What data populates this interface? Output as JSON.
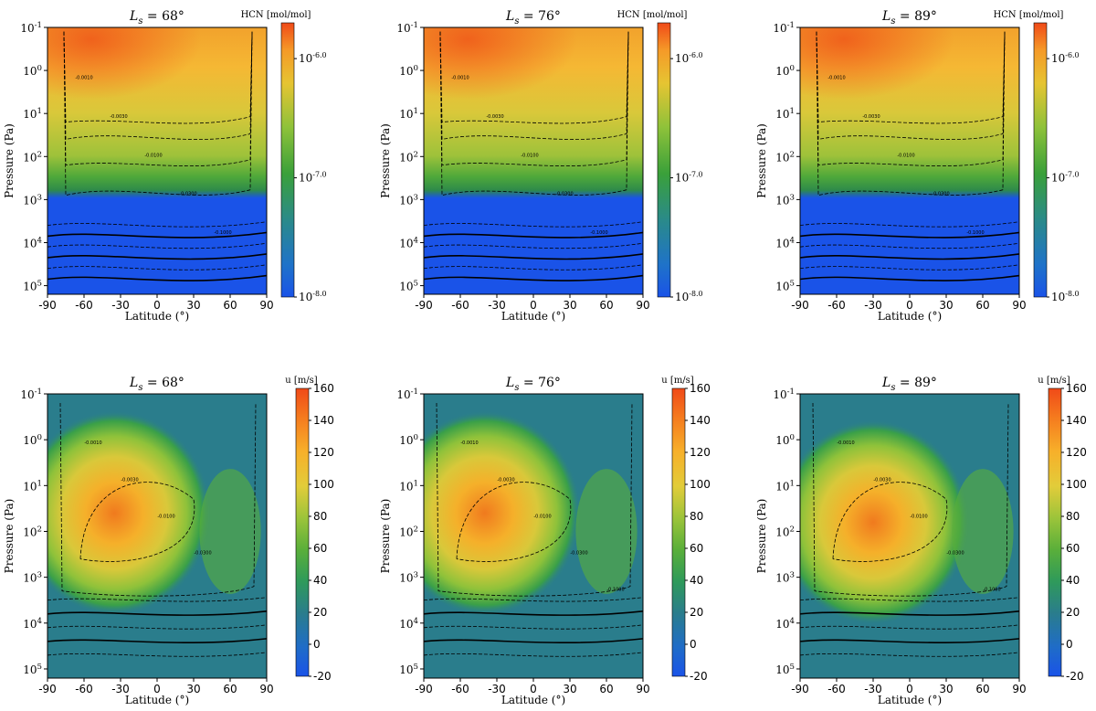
{
  "chart_data": [
    {
      "type": "heatmap",
      "variable": "HCN",
      "colorbar_label": "HCN [mol/mol]",
      "title_prefix": "L",
      "title_subscript": "s",
      "title_value": "68",
      "title_degree": "°",
      "xlabel": "Latitude (°)",
      "ylabel": "Pressure (Pa)",
      "xticks": [
        "-90",
        "-60",
        "-30",
        "0",
        "30",
        "60",
        "90"
      ],
      "xlim": [
        -90,
        90
      ],
      "yticks": [
        {
          "base": "10",
          "exp": "-1"
        },
        {
          "base": "10",
          "exp": "0"
        },
        {
          "base": "10",
          "exp": "1"
        },
        {
          "base": "10",
          "exp": "2"
        },
        {
          "base": "10",
          "exp": "3"
        },
        {
          "base": "10",
          "exp": "4"
        },
        {
          "base": "10",
          "exp": "5"
        }
      ],
      "ylim_log10": [
        -1,
        5.2
      ],
      "cbar_ticks": [
        {
          "base": "10",
          "exp": "-6.0"
        },
        {
          "base": "10",
          "exp": "-7.0"
        },
        {
          "base": "10",
          "exp": "-8.0"
        }
      ],
      "cbar_range_log10": [
        -8,
        -5.7
      ],
      "contour_labels": [
        "-0.0010",
        "-0.0030",
        "-0.0100",
        "-0.0300",
        "-0.1000"
      ]
    },
    {
      "type": "heatmap",
      "variable": "HCN",
      "colorbar_label": "HCN [mol/mol]",
      "title_prefix": "L",
      "title_subscript": "s",
      "title_value": "76",
      "title_degree": "°",
      "xlabel": "Latitude (°)",
      "ylabel": "Pressure (Pa)",
      "xticks": [
        "-90",
        "-60",
        "-30",
        "0",
        "30",
        "60",
        "90"
      ],
      "xlim": [
        -90,
        90
      ],
      "yticks": [
        {
          "base": "10",
          "exp": "-1"
        },
        {
          "base": "10",
          "exp": "0"
        },
        {
          "base": "10",
          "exp": "1"
        },
        {
          "base": "10",
          "exp": "2"
        },
        {
          "base": "10",
          "exp": "3"
        },
        {
          "base": "10",
          "exp": "4"
        },
        {
          "base": "10",
          "exp": "5"
        }
      ],
      "ylim_log10": [
        -1,
        5.2
      ],
      "cbar_ticks": [
        {
          "base": "10",
          "exp": "-6.0"
        },
        {
          "base": "10",
          "exp": "-7.0"
        },
        {
          "base": "10",
          "exp": "-8.0"
        }
      ],
      "cbar_range_log10": [
        -8,
        -5.7
      ],
      "contour_labels": [
        "-0.0010",
        "-0.0030",
        "-0.0100",
        "-0.0300",
        "-0.1000"
      ]
    },
    {
      "type": "heatmap",
      "variable": "HCN",
      "colorbar_label": "HCN [mol/mol]",
      "title_prefix": "L",
      "title_subscript": "s",
      "title_value": "89",
      "title_degree": "°",
      "xlabel": "Latitude (°)",
      "ylabel": "Pressure (Pa)",
      "xticks": [
        "-90",
        "-60",
        "-30",
        "0",
        "30",
        "60",
        "90"
      ],
      "xlim": [
        -90,
        90
      ],
      "yticks": [
        {
          "base": "10",
          "exp": "-1"
        },
        {
          "base": "10",
          "exp": "0"
        },
        {
          "base": "10",
          "exp": "1"
        },
        {
          "base": "10",
          "exp": "2"
        },
        {
          "base": "10",
          "exp": "3"
        },
        {
          "base": "10",
          "exp": "4"
        },
        {
          "base": "10",
          "exp": "5"
        }
      ],
      "ylim_log10": [
        -1,
        5.2
      ],
      "cbar_ticks": [
        {
          "base": "10",
          "exp": "-6.0"
        },
        {
          "base": "10",
          "exp": "-7.0"
        },
        {
          "base": "10",
          "exp": "-8.0"
        }
      ],
      "cbar_range_log10": [
        -8,
        -5.7
      ],
      "contour_labels": [
        "-0.0010",
        "-0.0030",
        "-0.0100",
        "-0.0300",
        "-0.1000"
      ]
    },
    {
      "type": "heatmap",
      "variable": "u",
      "colorbar_label": "u [m/s]",
      "title_prefix": "L",
      "title_subscript": "s",
      "title_value": "68",
      "title_degree": "°",
      "xlabel": "Latitude (°)",
      "ylabel": "Pressure (Pa)",
      "xticks": [
        "-90",
        "-60",
        "-30",
        "0",
        "30",
        "60",
        "90"
      ],
      "xlim": [
        -90,
        90
      ],
      "yticks": [
        {
          "base": "10",
          "exp": "-1"
        },
        {
          "base": "10",
          "exp": "0"
        },
        {
          "base": "10",
          "exp": "1"
        },
        {
          "base": "10",
          "exp": "2"
        },
        {
          "base": "10",
          "exp": "3"
        },
        {
          "base": "10",
          "exp": "4"
        },
        {
          "base": "10",
          "exp": "5"
        }
      ],
      "ylim_log10": [
        -1,
        5.2
      ],
      "cbar_ticks": [
        "160",
        "140",
        "120",
        "100",
        "80",
        "60",
        "40",
        "20",
        "0",
        "-20"
      ],
      "cbar_range": [
        -20,
        160
      ],
      "contour_labels": [
        "-0.0010",
        "-0.0030",
        "-0.0100",
        "-0.0300"
      ]
    },
    {
      "type": "heatmap",
      "variable": "u",
      "colorbar_label": "u [m/s]",
      "title_prefix": "L",
      "title_subscript": "s",
      "title_value": "76",
      "title_degree": "°",
      "xlabel": "Latitude (°)",
      "ylabel": "Pressure (Pa)",
      "xticks": [
        "-90",
        "-60",
        "-30",
        "0",
        "30",
        "60",
        "90"
      ],
      "xlim": [
        -90,
        90
      ],
      "yticks": [
        {
          "base": "10",
          "exp": "-1"
        },
        {
          "base": "10",
          "exp": "0"
        },
        {
          "base": "10",
          "exp": "1"
        },
        {
          "base": "10",
          "exp": "2"
        },
        {
          "base": "10",
          "exp": "3"
        },
        {
          "base": "10",
          "exp": "4"
        },
        {
          "base": "10",
          "exp": "5"
        }
      ],
      "ylim_log10": [
        -1,
        5.2
      ],
      "cbar_ticks": [
        "160",
        "140",
        "120",
        "100",
        "80",
        "60",
        "40",
        "20",
        "0",
        "-20"
      ],
      "cbar_range": [
        -20,
        160
      ],
      "contour_labels": [
        "-0.0010",
        "-0.0030",
        "-0.0100",
        "-0.0300",
        "-0.1000"
      ]
    },
    {
      "type": "heatmap",
      "variable": "u",
      "colorbar_label": "u [m/s]",
      "title_prefix": "L",
      "title_subscript": "s",
      "title_value": "89",
      "title_degree": "°",
      "xlabel": "Latitude (°)",
      "ylabel": "Pressure (Pa)",
      "xticks": [
        "-90",
        "-60",
        "-30",
        "0",
        "30",
        "60",
        "90"
      ],
      "xlim": [
        -90,
        90
      ],
      "yticks": [
        {
          "base": "10",
          "exp": "-1"
        },
        {
          "base": "10",
          "exp": "0"
        },
        {
          "base": "10",
          "exp": "1"
        },
        {
          "base": "10",
          "exp": "2"
        },
        {
          "base": "10",
          "exp": "3"
        },
        {
          "base": "10",
          "exp": "4"
        },
        {
          "base": "10",
          "exp": "5"
        }
      ],
      "ylim_log10": [
        -1,
        5.2
      ],
      "cbar_ticks": [
        "160",
        "140",
        "120",
        "100",
        "80",
        "60",
        "40",
        "20",
        "0",
        "-20"
      ],
      "cbar_range": [
        -20,
        160
      ],
      "contour_labels": [
        "-0.0010",
        "-0.0030",
        "-0.0100",
        "-0.0300",
        "-0.1000"
      ]
    }
  ]
}
